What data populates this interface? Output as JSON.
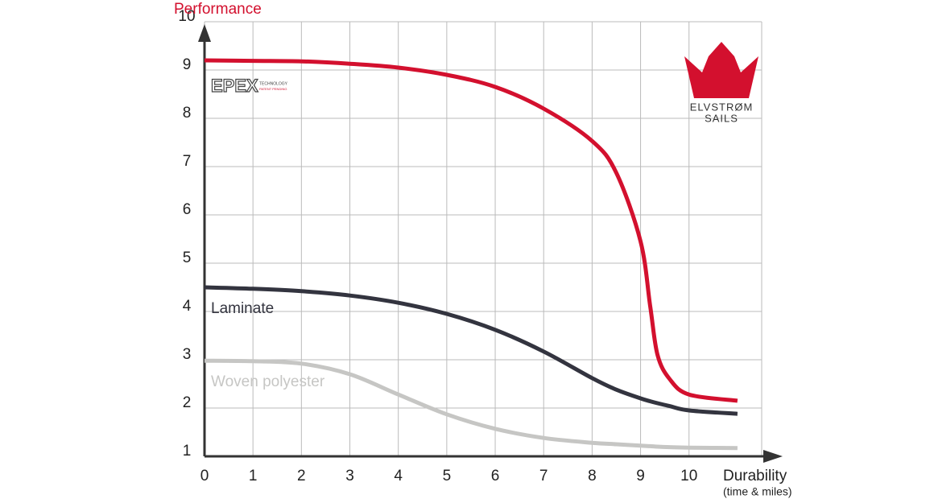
{
  "chart_data": {
    "type": "line",
    "y_label": "Performance",
    "x_label": "Durability",
    "x_sublabel": "(time & miles)",
    "x": [
      0,
      1,
      2,
      3,
      4,
      5,
      6,
      7,
      8,
      8.5,
      9,
      9.2,
      9.35,
      9.6,
      10,
      11
    ],
    "series": [
      {
        "color": "#d3102e",
        "values": [
          9.2,
          9.19,
          9.18,
          9.13,
          9.05,
          8.9,
          8.65,
          8.2,
          7.53,
          6.87,
          5.45,
          4.1,
          3.1,
          2.6,
          2.28,
          2.15
        ]
      },
      {
        "name": "Laminate",
        "color": "#33343f",
        "values": [
          4.5,
          4.47,
          4.42,
          4.33,
          4.18,
          3.95,
          3.62,
          3.17,
          2.62,
          2.38,
          2.2,
          2.14,
          2.1,
          2.04,
          1.95,
          1.88
        ]
      },
      {
        "name": "Woven polyester",
        "color": "#c6c6c4",
        "values": [
          2.98,
          2.97,
          2.92,
          2.7,
          2.28,
          1.87,
          1.57,
          1.38,
          1.28,
          1.25,
          1.22,
          1.21,
          1.2,
          1.19,
          1.18,
          1.17
        ]
      }
    ],
    "xlim": [
      0,
      11.5
    ],
    "ylim": [
      1,
      10
    ],
    "xticks": [
      0,
      1,
      2,
      3,
      4,
      5,
      6,
      7,
      8,
      9,
      10
    ],
    "yticks": [
      1,
      2,
      3,
      4,
      5,
      6,
      7,
      8,
      9,
      10
    ],
    "grid": true,
    "logos": {
      "epex": "EPEX",
      "epex_sub1": "TECHNOLOGY",
      "epex_sub2": "PATENT PENDING",
      "brand": "ELVSTRØM",
      "brand_sub": "SAILS"
    }
  }
}
